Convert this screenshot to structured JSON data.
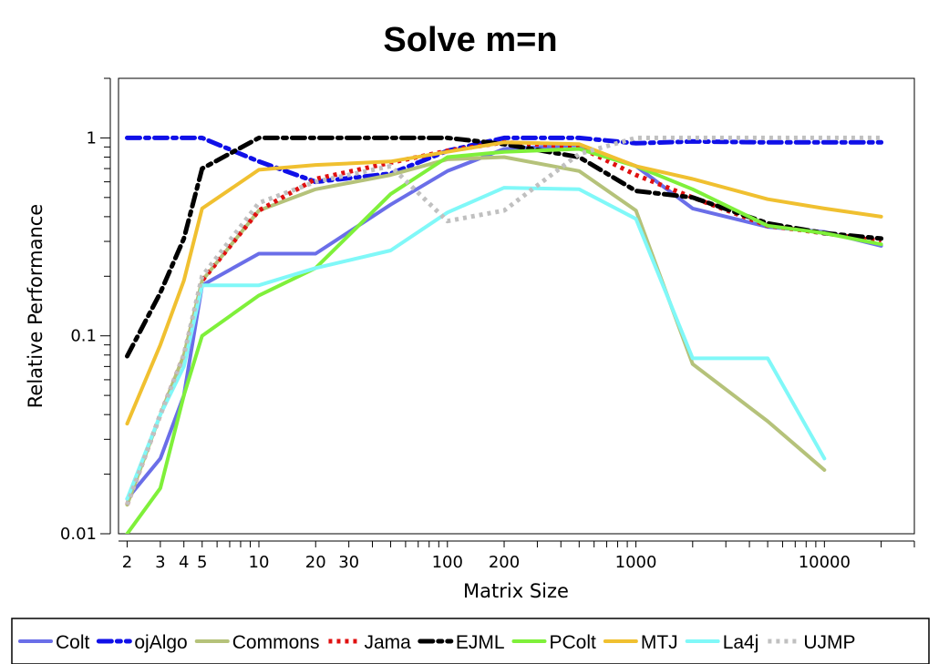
{
  "chart_data": {
    "type": "line",
    "title": "Solve m=n",
    "xlabel": "Matrix Size",
    "ylabel": "Relative Performance",
    "xscale": "log",
    "yscale": "log",
    "xlim": [
      1.8,
      30000
    ],
    "ylim": [
      0.01,
      2
    ],
    "xticks": [
      {
        "value": 2,
        "label": "2"
      },
      {
        "value": 3,
        "label": "3"
      },
      {
        "value": 4,
        "label": "4"
      },
      {
        "value": 5,
        "label": "5"
      },
      {
        "value": 10,
        "label": "10"
      },
      {
        "value": 20,
        "label": "20"
      },
      {
        "value": 30,
        "label": "30"
      },
      {
        "value": 100,
        "label": "100"
      },
      {
        "value": 200,
        "label": "200"
      },
      {
        "value": 1000,
        "label": "1000"
      },
      {
        "value": 10000,
        "label": "10000"
      }
    ],
    "yticks": [
      {
        "value": 0.01,
        "label": "0.01"
      },
      {
        "value": 0.1,
        "label": "0.1"
      },
      {
        "value": 1,
        "label": "1"
      }
    ],
    "grid": false,
    "legend_position": "bottom",
    "x": [
      2,
      3,
      4,
      5,
      10,
      20,
      50,
      100,
      200,
      500,
      1000,
      2000,
      5000,
      10000,
      20000
    ],
    "series": [
      {
        "name": "Colt",
        "color": "#6a6ee8",
        "dash": "solid",
        "values": [
          0.015,
          0.024,
          0.05,
          0.18,
          0.26,
          0.26,
          0.46,
          0.68,
          0.88,
          0.92,
          0.72,
          0.44,
          0.355,
          0.335,
          0.285
        ]
      },
      {
        "name": "ojAlgo",
        "color": "#1010e8",
        "dash": "dashdot",
        "values": [
          1.0,
          1.0,
          1.0,
          1.0,
          0.76,
          0.6,
          0.66,
          0.86,
          1.0,
          1.0,
          0.94,
          0.96,
          0.95,
          0.95,
          0.95
        ]
      },
      {
        "name": "Commons",
        "color": "#b5c27a",
        "dash": "solid",
        "values": [
          0.014,
          0.04,
          0.08,
          0.19,
          0.43,
          0.55,
          0.65,
          0.78,
          0.8,
          0.68,
          0.43,
          0.072,
          0.037,
          0.021,
          null
        ]
      },
      {
        "name": "Jama",
        "color": "#e01010",
        "dash": "dot",
        "values": [
          0.014,
          0.04,
          0.08,
          0.19,
          0.43,
          0.62,
          0.75,
          0.86,
          0.95,
          0.9,
          0.65,
          0.5,
          0.36,
          0.33,
          0.3
        ]
      },
      {
        "name": "EJML",
        "color": "#000000",
        "dash": "dashdot",
        "values": [
          0.079,
          0.165,
          0.31,
          0.7,
          1.0,
          1.0,
          1.0,
          1.0,
          0.93,
          0.8,
          0.54,
          0.5,
          0.37,
          0.33,
          0.31
        ]
      },
      {
        "name": "PColt",
        "color": "#7ff03a",
        "dash": "solid",
        "values": [
          0.01,
          0.017,
          0.05,
          0.1,
          0.16,
          0.22,
          0.52,
          0.8,
          0.85,
          0.88,
          0.72,
          0.55,
          0.36,
          0.33,
          0.29
        ]
      },
      {
        "name": "MTJ",
        "color": "#f0c030",
        "dash": "solid",
        "values": [
          0.036,
          0.09,
          0.19,
          0.44,
          0.69,
          0.73,
          0.76,
          0.85,
          0.95,
          0.93,
          0.72,
          0.62,
          0.49,
          0.44,
          0.4
        ]
      },
      {
        "name": "La4j",
        "color": "#80f8f8",
        "dash": "solid",
        "values": [
          0.015,
          0.04,
          0.07,
          0.18,
          0.18,
          0.22,
          0.27,
          0.42,
          0.56,
          0.55,
          0.39,
          0.077,
          0.077,
          0.024,
          null
        ]
      },
      {
        "name": "UJMP",
        "color": "#c0c0c0",
        "dash": "dot",
        "values": [
          0.014,
          0.04,
          0.08,
          0.2,
          0.47,
          0.6,
          0.72,
          0.38,
          0.43,
          0.83,
          1.0,
          1.0,
          1.0,
          1.0,
          1.0
        ]
      }
    ]
  }
}
